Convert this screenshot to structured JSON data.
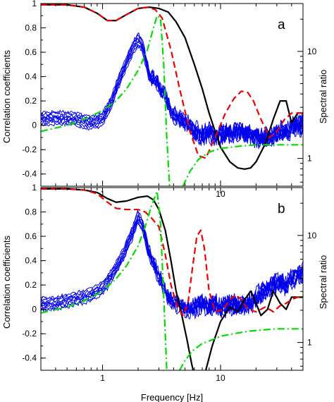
{
  "colors": {
    "correlation": "#0000ee",
    "black_curve": "#000000",
    "red_dashed": "#ee0000",
    "green_dashdot": "#00dd00"
  },
  "labels": {
    "left_axis": "Correlation coefficients",
    "right_axis": "Spectral ratio",
    "x_axis": "Frequency  [Hz]"
  },
  "chart_data": [
    {
      "type": "line",
      "panel": "a",
      "x_scale": "log",
      "xlim": [
        0.3,
        50
      ],
      "ylim": [
        -0.5,
        1.0
      ],
      "y2_scale": "log",
      "x_ticks": [
        1,
        10
      ],
      "x_tick_labels": [
        "1",
        "10"
      ],
      "y_ticks": [
        -0.4,
        -0.2,
        0,
        0.2,
        0.4,
        0.6,
        0.8,
        1
      ],
      "y_tick_labels": [
        "-0.4",
        "-0.2",
        "0",
        "0.2",
        "0.4",
        "0.6",
        "0.8",
        "1"
      ],
      "y2_ticks": [
        1,
        10
      ],
      "y2_tick_labels": [
        "1",
        "10"
      ],
      "series": [
        {
          "style": "solid",
          "color_key": "black_curve",
          "x": [
            0.3,
            0.5,
            0.7,
            0.9,
            1.1,
            1.3,
            1.6,
            2.0,
            2.5,
            3.0,
            3.6,
            4.2,
            5.0,
            6.0,
            7.0,
            8.0,
            9.0,
            10.0,
            12,
            14,
            16,
            18,
            20,
            24,
            28,
            32,
            36,
            40,
            45,
            50
          ],
          "y": [
            0.99,
            0.99,
            0.97,
            0.92,
            0.86,
            0.86,
            0.91,
            0.96,
            0.97,
            0.96,
            0.93,
            0.85,
            0.72,
            0.5,
            0.3,
            0.1,
            -0.05,
            -0.18,
            -0.3,
            -0.35,
            -0.36,
            -0.35,
            -0.3,
            -0.15,
            0.05,
            0.2,
            0.2,
            0.02,
            0.1,
            0.1
          ]
        },
        {
          "style": "dashed",
          "color_key": "red_dashed",
          "x": [
            0.3,
            0.5,
            0.7,
            0.9,
            1.1,
            1.3,
            1.6,
            2.0,
            2.4,
            2.8,
            3.2,
            3.8,
            4.5,
            5.5,
            6.5,
            7.5,
            9,
            11,
            13,
            15,
            17,
            19,
            22,
            26,
            30,
            35,
            40,
            45,
            50
          ],
          "y": [
            0.99,
            0.99,
            0.97,
            0.92,
            0.86,
            0.86,
            0.91,
            0.96,
            0.97,
            0.95,
            0.88,
            0.62,
            0.3,
            -0.05,
            -0.25,
            -0.27,
            -0.1,
            0.1,
            0.22,
            0.28,
            0.27,
            0.2,
            0.05,
            -0.1,
            -0.05,
            0.05,
            0.1,
            0.1,
            0.1
          ]
        },
        {
          "style": "dashdot",
          "color_key": "green_dashdot",
          "x": [
            0.3,
            0.5,
            0.7,
            1.0,
            1.3,
            1.6,
            2.0,
            2.4,
            2.7,
            2.9,
            3.1,
            3.3,
            3.5,
            3.7
          ],
          "y": [
            -0.05,
            0.0,
            0.05,
            0.12,
            0.2,
            0.3,
            0.45,
            0.62,
            0.8,
            0.9,
            0.88,
            0.5,
            -0.1,
            -0.5
          ]
        },
        {
          "style": "dashdot",
          "color_key": "green_dashdot",
          "x": [
            4.8,
            5.5,
            6.5,
            8.0,
            10,
            15,
            20,
            30,
            40,
            50
          ],
          "y": [
            -0.5,
            -0.38,
            -0.28,
            -0.22,
            -0.19,
            -0.17,
            -0.16,
            -0.16,
            -0.16,
            -0.16
          ]
        }
      ],
      "correlation_bundle": {
        "count": 9,
        "color_key": "correlation",
        "x": [
          0.3,
          0.4,
          0.5,
          0.6,
          0.7,
          0.8,
          0.9,
          1.0,
          1.1,
          1.2,
          1.3,
          1.4,
          1.5,
          1.6,
          1.7,
          1.8,
          1.9,
          2.0,
          2.1,
          2.2,
          2.3,
          2.4,
          2.5,
          2.7,
          2.9,
          3.1,
          3.3,
          3.5,
          3.8,
          4.1,
          4.5,
          5.0,
          5.5,
          6.0,
          7.0,
          8.0,
          9.0,
          10,
          12,
          14,
          16,
          18,
          20,
          24,
          28,
          32,
          36,
          40,
          45,
          50
        ],
        "y": [
          0.05,
          0.06,
          0.06,
          0.05,
          0.03,
          0.02,
          0.03,
          0.06,
          0.12,
          0.2,
          0.3,
          0.38,
          0.45,
          0.52,
          0.58,
          0.63,
          0.67,
          0.7,
          0.68,
          0.63,
          0.55,
          0.48,
          0.4,
          0.38,
          0.35,
          0.3,
          0.28,
          0.2,
          0.12,
          0.08,
          0.05,
          0.03,
          0.0,
          -0.05,
          -0.08,
          -0.05,
          -0.1,
          -0.08,
          -0.05,
          -0.05,
          -0.06,
          -0.08,
          -0.1,
          -0.1,
          -0.08,
          -0.05,
          -0.05,
          -0.02,
          0.0,
          0.0
        ]
      }
    },
    {
      "type": "line",
      "panel": "b",
      "x_scale": "log",
      "xlim": [
        0.3,
        50
      ],
      "ylim": [
        -0.5,
        1.0
      ],
      "y2_scale": "log",
      "x_ticks": [
        1,
        10
      ],
      "x_tick_labels": [
        "1",
        "10"
      ],
      "y_ticks": [
        -0.4,
        -0.2,
        0,
        0.2,
        0.4,
        0.6,
        0.8,
        1
      ],
      "y_tick_labels": [
        "-0.4",
        "-0.2",
        "0",
        "0.2",
        "0.4",
        "0.6",
        "0.8",
        "1"
      ],
      "y2_ticks": [
        1,
        10
      ],
      "y2_tick_labels": [
        "1",
        "10"
      ],
      "series": [
        {
          "style": "solid",
          "color_key": "black_curve",
          "x": [
            0.3,
            0.5,
            0.7,
            0.9,
            1.1,
            1.3,
            1.6,
            2.0,
            2.4,
            2.7,
            3.0,
            3.4,
            3.8,
            4.2,
            4.7,
            5.2,
            5.7,
            6.2,
            6.8,
            7.5,
            8.5,
            10,
            12,
            14,
            16,
            18,
            20,
            22,
            25,
            28,
            32,
            36,
            40,
            45,
            50
          ],
          "y": [
            0.99,
            0.99,
            0.98,
            0.96,
            0.91,
            0.88,
            0.89,
            0.92,
            0.93,
            0.9,
            0.82,
            0.65,
            0.4,
            0.15,
            -0.05,
            -0.25,
            -0.45,
            -0.6,
            -0.62,
            -0.5,
            -0.3,
            -0.1,
            0.02,
            -0.02,
            0.08,
            0.15,
            0.05,
            -0.05,
            0.0,
            0.15,
            0.05,
            0.0,
            0.1,
            0.1,
            0.1
          ]
        },
        {
          "style": "dashed",
          "color_key": "red_dashed",
          "x": [
            0.3,
            0.5,
            0.7,
            0.9,
            1.1,
            1.3,
            1.6,
            2.0,
            2.3,
            2.6,
            3.0,
            3.4,
            3.8,
            4.3,
            4.8,
            5.3,
            5.8,
            6.3,
            6.8,
            7.3,
            8.0,
            9.0,
            10.5,
            12,
            13.5,
            15,
            17,
            20,
            24,
            28,
            32,
            36,
            40,
            45,
            50
          ],
          "y": [
            0.99,
            0.99,
            0.98,
            0.95,
            0.88,
            0.83,
            0.82,
            0.82,
            0.8,
            0.75,
            0.68,
            0.45,
            0.2,
            0.02,
            -0.05,
            0.05,
            0.35,
            0.6,
            0.65,
            0.5,
            0.15,
            -0.02,
            0.0,
            0.08,
            0.12,
            0.08,
            0.0,
            -0.02,
            0.02,
            -0.02,
            0.03,
            0.05,
            0.08,
            0.1,
            0.1
          ]
        },
        {
          "style": "dashdot",
          "color_key": "green_dashdot",
          "x": [
            0.3,
            0.5,
            0.7,
            1.0,
            1.3,
            1.6,
            2.0,
            2.3,
            2.6,
            2.9,
            3.1,
            3.3,
            3.5
          ],
          "y": [
            -0.03,
            0.02,
            0.07,
            0.15,
            0.25,
            0.36,
            0.52,
            0.68,
            0.85,
            0.97,
            0.7,
            0.1,
            -0.5
          ]
        },
        {
          "style": "dashdot",
          "color_key": "green_dashdot",
          "x": [
            4.5,
            5.0,
            5.8,
            7.0,
            8.5,
            10,
            13,
            17,
            22,
            30,
            40,
            50
          ],
          "y": [
            -0.5,
            -0.42,
            -0.34,
            -0.28,
            -0.25,
            -0.22,
            -0.2,
            -0.18,
            -0.17,
            -0.16,
            -0.16,
            -0.16
          ]
        }
      ],
      "correlation_bundle": {
        "count": 9,
        "color_key": "correlation",
        "x": [
          0.3,
          0.4,
          0.5,
          0.6,
          0.7,
          0.8,
          0.9,
          1.0,
          1.1,
          1.2,
          1.3,
          1.4,
          1.5,
          1.6,
          1.7,
          1.8,
          1.9,
          2.0,
          2.1,
          2.2,
          2.3,
          2.4,
          2.5,
          2.7,
          2.9,
          3.1,
          3.3,
          3.5,
          3.8,
          4.1,
          4.5,
          5.0,
          5.5,
          6.0,
          7.0,
          8.0,
          9.0,
          10,
          12,
          14,
          16,
          18,
          20,
          24,
          28,
          32,
          36,
          40,
          45,
          50
        ],
        "y": [
          0.04,
          0.05,
          0.07,
          0.09,
          0.1,
          0.12,
          0.15,
          0.18,
          0.22,
          0.28,
          0.34,
          0.4,
          0.45,
          0.52,
          0.58,
          0.63,
          0.7,
          0.76,
          0.72,
          0.68,
          0.6,
          0.52,
          0.45,
          0.38,
          0.3,
          0.25,
          0.18,
          0.12,
          0.08,
          0.05,
          0.03,
          0.0,
          0.0,
          0.02,
          0.05,
          0.02,
          0.05,
          0.0,
          0.05,
          0.02,
          0.05,
          0.05,
          0.1,
          0.15,
          0.2,
          0.22,
          0.2,
          0.25,
          0.28,
          0.3
        ]
      }
    }
  ]
}
